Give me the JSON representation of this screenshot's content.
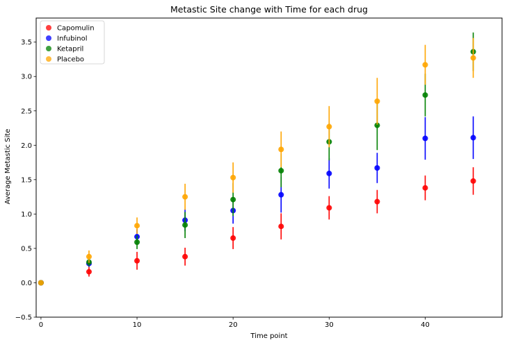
{
  "chart_data": {
    "type": "scatter",
    "title": "Metastic Site change with Time for each drug",
    "xlabel": "Time point",
    "ylabel": "Average Metastic Site",
    "xlim": [
      -0.5,
      48
    ],
    "ylim": [
      -0.5,
      3.85
    ],
    "x_ticks": [
      0,
      10,
      20,
      30,
      40
    ],
    "y_ticks": [
      -0.5,
      0.0,
      0.5,
      1.0,
      1.5,
      2.0,
      2.5,
      3.0,
      3.5
    ],
    "x_tick_labels": [
      "0",
      "10",
      "20",
      "30",
      "40"
    ],
    "y_tick_labels": [
      "−0.5",
      "0.0",
      "0.5",
      "1.0",
      "1.5",
      "2.0",
      "2.5",
      "3.0",
      "3.5"
    ],
    "grid": false,
    "legend_position": "top-left",
    "x": [
      0,
      5,
      10,
      15,
      20,
      25,
      30,
      35,
      40,
      45
    ],
    "series": [
      {
        "name": "Capomulin",
        "color": "#ff0000",
        "values": [
          0.0,
          0.16,
          0.32,
          0.38,
          0.65,
          0.82,
          1.09,
          1.18,
          1.38,
          1.48
        ],
        "errors": [
          0.0,
          0.07,
          0.13,
          0.13,
          0.16,
          0.19,
          0.17,
          0.17,
          0.18,
          0.2
        ]
      },
      {
        "name": "Infubinol",
        "color": "#0000ff",
        "values": [
          0.0,
          0.28,
          0.67,
          0.91,
          1.05,
          1.28,
          1.59,
          1.67,
          2.1,
          2.11
        ],
        "errors": [
          0.0,
          0.05,
          0.11,
          0.16,
          0.19,
          0.26,
          0.22,
          0.22,
          0.31,
          0.31
        ]
      },
      {
        "name": "Ketapril",
        "color": "#008000",
        "values": [
          0.0,
          0.3,
          0.59,
          0.84,
          1.21,
          1.63,
          2.05,
          2.29,
          2.73,
          3.36
        ],
        "errors": [
          0.0,
          0.06,
          0.1,
          0.19,
          0.24,
          0.24,
          0.27,
          0.36,
          0.31,
          0.28
        ]
      },
      {
        "name": "Placebo",
        "color": "#ffa500",
        "values": [
          0.0,
          0.38,
          0.83,
          1.25,
          1.53,
          1.94,
          2.27,
          2.64,
          3.17,
          3.27
        ],
        "errors": [
          0.0,
          0.09,
          0.12,
          0.19,
          0.22,
          0.26,
          0.3,
          0.34,
          0.29,
          0.29
        ]
      }
    ]
  }
}
